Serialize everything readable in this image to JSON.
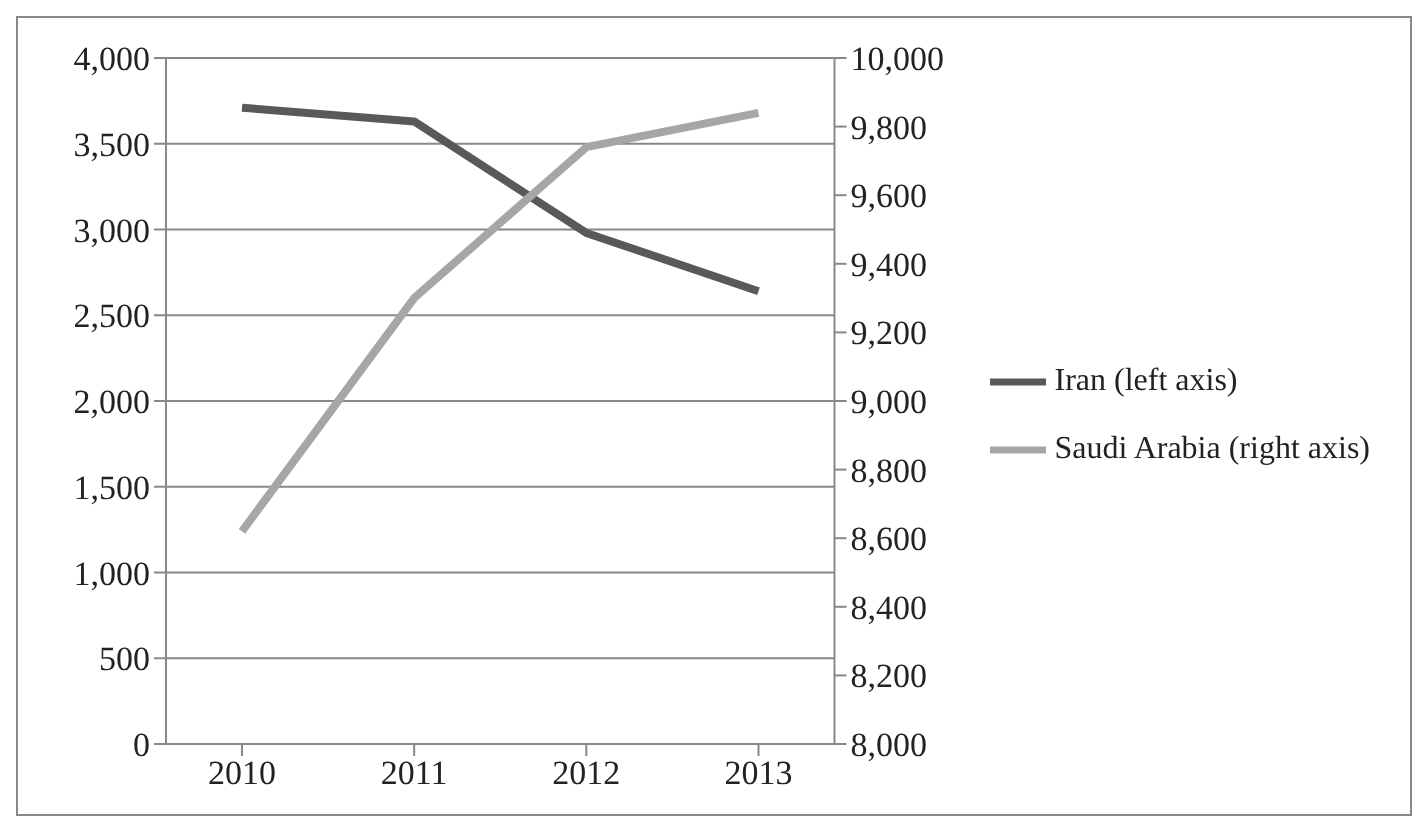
{
  "chart_data": {
    "type": "line",
    "categories": [
      "2010",
      "2011",
      "2012",
      "2013"
    ],
    "series": [
      {
        "name": "Iran (left axis)",
        "color": "#595959",
        "values": [
          3710,
          3630,
          2980,
          2640
        ]
      },
      {
        "name": "Saudi Arabia (right axis)",
        "color": "#a6a6a6",
        "axis": "y2",
        "values": [
          8620,
          9300,
          9740,
          9840
        ]
      }
    ],
    "ylim": [
      0,
      4000
    ],
    "yticks": [
      {
        "value": 0,
        "label": "0"
      },
      {
        "value": 500,
        "label": "500"
      },
      {
        "value": 1000,
        "label": "1,000"
      },
      {
        "value": 1500,
        "label": "1,500"
      },
      {
        "value": 2000,
        "label": "2,000"
      },
      {
        "value": 2500,
        "label": "2,500"
      },
      {
        "value": 3000,
        "label": "3,000"
      },
      {
        "value": 3500,
        "label": "3,500"
      },
      {
        "value": 4000,
        "label": "4,000"
      }
    ],
    "y2lim": [
      8000,
      10000
    ],
    "y2ticks": [
      {
        "value": 8000,
        "label": "8,000"
      },
      {
        "value": 8200,
        "label": "8,200"
      },
      {
        "value": 8400,
        "label": "8,400"
      },
      {
        "value": 8600,
        "label": "8,600"
      },
      {
        "value": 8800,
        "label": "8,800"
      },
      {
        "value": 9000,
        "label": "9,000"
      },
      {
        "value": 9200,
        "label": "9,200"
      },
      {
        "value": 9400,
        "label": "9,400"
      },
      {
        "value": 9600,
        "label": "9,600"
      },
      {
        "value": 9800,
        "label": "9,800"
      },
      {
        "value": 10000,
        "label": "10,000"
      }
    ],
    "grid": "y",
    "legend": "right",
    "marker": "none",
    "line_style": "solid"
  }
}
